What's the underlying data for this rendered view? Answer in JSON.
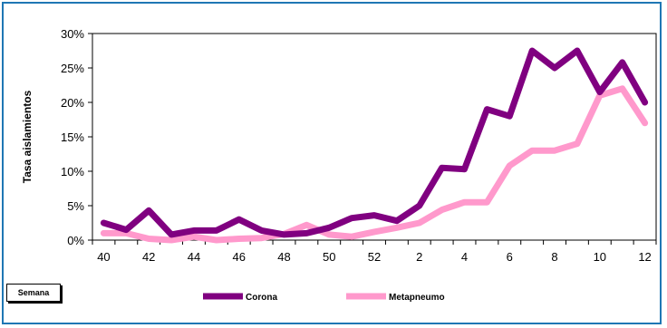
{
  "chart_data": {
    "type": "line",
    "title": "",
    "xlabel": "Semana",
    "ylabel": "Tasa aislamientos",
    "y_tick_labels": [
      "0%",
      "5%",
      "10%",
      "15%",
      "20%",
      "25%",
      "30%"
    ],
    "ylim": [
      0,
      30
    ],
    "x": [
      "40",
      "41",
      "42",
      "43",
      "44",
      "45",
      "46",
      "47",
      "48",
      "49",
      "50",
      "51",
      "52",
      "1",
      "2",
      "3",
      "4",
      "5",
      "6",
      "7",
      "8",
      "9",
      "10",
      "11",
      "12"
    ],
    "x_tick_labels": [
      "40",
      "42",
      "44",
      "46",
      "48",
      "50",
      "52",
      "2",
      "4",
      "6",
      "8",
      "10",
      "12"
    ],
    "grid": false,
    "legend_position": "bottom",
    "series": [
      {
        "name": "Corona",
        "color": "#800080",
        "values": [
          2.5,
          1.5,
          4.3,
          0.8,
          1.4,
          1.4,
          3.0,
          1.4,
          0.8,
          1.0,
          1.8,
          3.2,
          3.6,
          2.8,
          5.0,
          10.5,
          10.3,
          19.0,
          18.0,
          27.5,
          25.0,
          27.5,
          21.5,
          25.8,
          20.0
        ]
      },
      {
        "name": "Metapneumo",
        "color": "#ff99cc",
        "values": [
          1.0,
          1.0,
          0.2,
          0.0,
          0.5,
          0.0,
          0.2,
          0.3,
          0.9,
          2.2,
          0.8,
          0.5,
          1.2,
          1.8,
          2.5,
          4.4,
          5.5,
          5.5,
          10.8,
          13.0,
          13.0,
          14.0,
          21.0,
          22.0,
          17.0
        ]
      }
    ]
  }
}
